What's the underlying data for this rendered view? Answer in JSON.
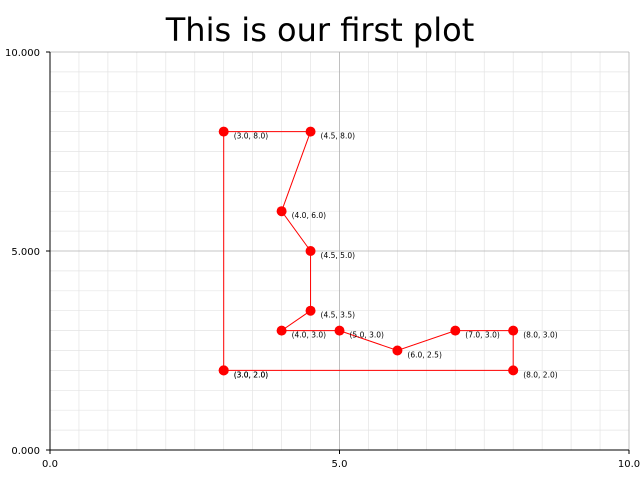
{
  "chart_data": {
    "type": "line",
    "title": "This is our first plot",
    "xlabel": "",
    "ylabel": "",
    "xlim": [
      0,
      10
    ],
    "ylim": [
      0,
      10
    ],
    "grid": true,
    "x_ticks": [
      0,
      5,
      10
    ],
    "x_tick_labels": [
      "0.0",
      "5.0",
      "10.0"
    ],
    "y_ticks": [
      0,
      5,
      10
    ],
    "y_tick_labels": [
      "0.000",
      "5.000",
      "10.000"
    ],
    "colors": {
      "series": "#ff0000",
      "grid_major": "#b0b0b0",
      "grid_minor": "#e4e4e4"
    },
    "series": [
      {
        "points": [
          {
            "x": 3.0,
            "y": 2.0,
            "label": "(3.0, 2.0)"
          },
          {
            "x": 3.0,
            "y": 8.0,
            "label": "(3.0, 8.0)"
          },
          {
            "x": 4.5,
            "y": 8.0,
            "label": "(4.5, 8.0)"
          },
          {
            "x": 4.0,
            "y": 6.0,
            "label": "(4.0, 6.0)"
          },
          {
            "x": 4.5,
            "y": 5.0,
            "label": "(4.5, 5.0)"
          },
          {
            "x": 4.5,
            "y": 3.5,
            "label": "(4.5, 3.5)"
          },
          {
            "x": 4.0,
            "y": 3.0,
            "label": "(4.0, 3.0)"
          },
          {
            "x": 5.0,
            "y": 3.0,
            "label": "(5.0, 3.0)"
          },
          {
            "x": 6.0,
            "y": 2.5,
            "label": "(6.0, 2.5)"
          },
          {
            "x": 7.0,
            "y": 3.0,
            "label": "(7.0, 3.0)"
          },
          {
            "x": 8.0,
            "y": 3.0,
            "label": "(8.0, 3.0)"
          },
          {
            "x": 8.0,
            "y": 2.0,
            "label": "(8.0, 2.0)"
          },
          {
            "x": 3.0,
            "y": 2.0,
            "label": "(3.0, 2.0)"
          }
        ]
      }
    ]
  }
}
